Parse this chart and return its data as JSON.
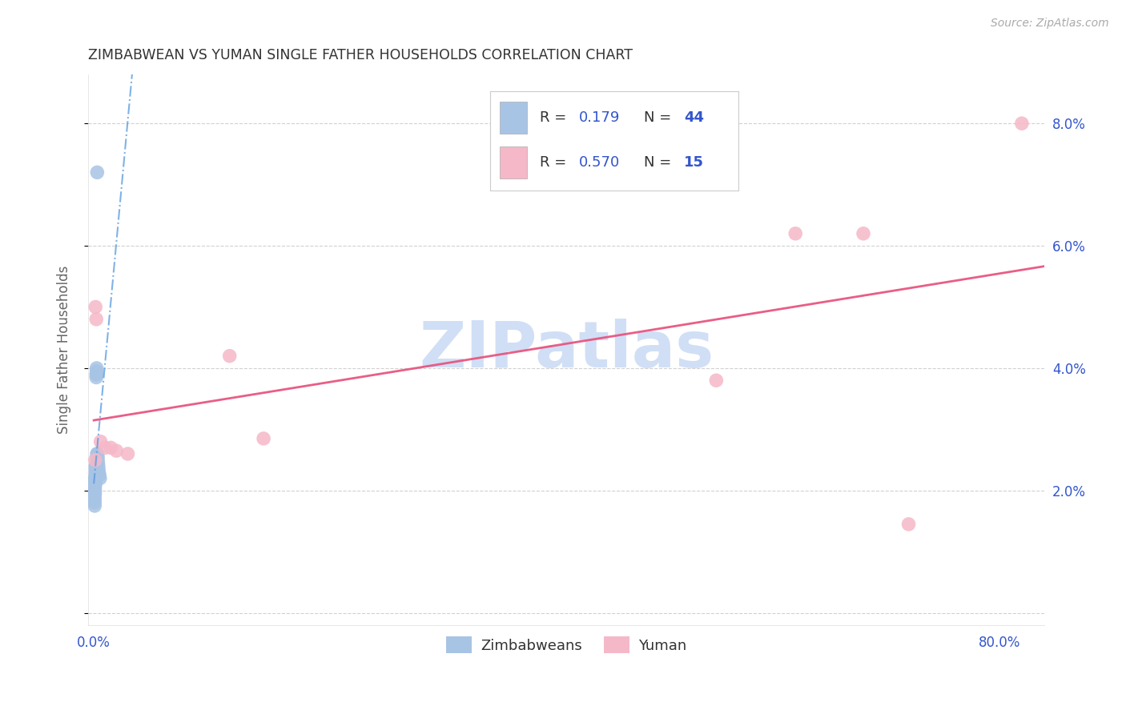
{
  "title": "ZIMBABWEAN VS YUMAN SINGLE FATHER HOUSEHOLDS CORRELATION CHART",
  "source": "Source: ZipAtlas.com",
  "ylabel": "Single Father Households",
  "watermark": "ZIPatlas",
  "xlim": [
    0.0,
    0.84
  ],
  "ylim": [
    0.0,
    0.088
  ],
  "zimbabwean_x": [
    0.0008,
    0.0008,
    0.0008,
    0.0008,
    0.0008,
    0.0008,
    0.0008,
    0.0008,
    0.0008,
    0.0008,
    0.001,
    0.001,
    0.001,
    0.001,
    0.0012,
    0.0012,
    0.0015,
    0.0015,
    0.0015,
    0.0015,
    0.0015,
    0.0015,
    0.002,
    0.002,
    0.002,
    0.0022,
    0.0022,
    0.0025,
    0.0025,
    0.0025,
    0.0028,
    0.0028,
    0.003,
    0.003,
    0.0032,
    0.0035,
    0.0035,
    0.0038,
    0.004,
    0.0042,
    0.0045,
    0.005,
    0.0055,
    0.003
  ],
  "zimbabwean_y": [
    0.022,
    0.0215,
    0.021,
    0.0205,
    0.02,
    0.0195,
    0.019,
    0.0185,
    0.018,
    0.0175,
    0.021,
    0.0205,
    0.02,
    0.0195,
    0.0215,
    0.021,
    0.024,
    0.0235,
    0.023,
    0.0225,
    0.022,
    0.0215,
    0.024,
    0.0235,
    0.023,
    0.039,
    0.0385,
    0.04,
    0.0395,
    0.039,
    0.026,
    0.0255,
    0.025,
    0.0245,
    0.026,
    0.0255,
    0.025,
    0.0245,
    0.024,
    0.0235,
    0.023,
    0.0225,
    0.022,
    0.072
  ],
  "yuman_x": [
    0.0012,
    0.0015,
    0.0022,
    0.006,
    0.01,
    0.015,
    0.02,
    0.03,
    0.12,
    0.15,
    0.55,
    0.62,
    0.68,
    0.72,
    0.82
  ],
  "yuman_y": [
    0.025,
    0.05,
    0.048,
    0.028,
    0.027,
    0.027,
    0.0265,
    0.026,
    0.042,
    0.0285,
    0.038,
    0.062,
    0.062,
    0.0145,
    0.08
  ],
  "zimbabwean_R": 0.179,
  "zimbabwean_N": 44,
  "yuman_R": 0.57,
  "yuman_N": 15,
  "blue_scatter_color": "#a8c4e5",
  "pink_scatter_color": "#f5b8c8",
  "blue_line_color": "#5599dd",
  "pink_line_color": "#e85580",
  "title_color": "#333333",
  "axis_tick_color": "#3355cc",
  "watermark_color": "#d0dff5",
  "legend_text_color": "#3355cc",
  "background_color": "#ffffff",
  "grid_color": "#cccccc"
}
